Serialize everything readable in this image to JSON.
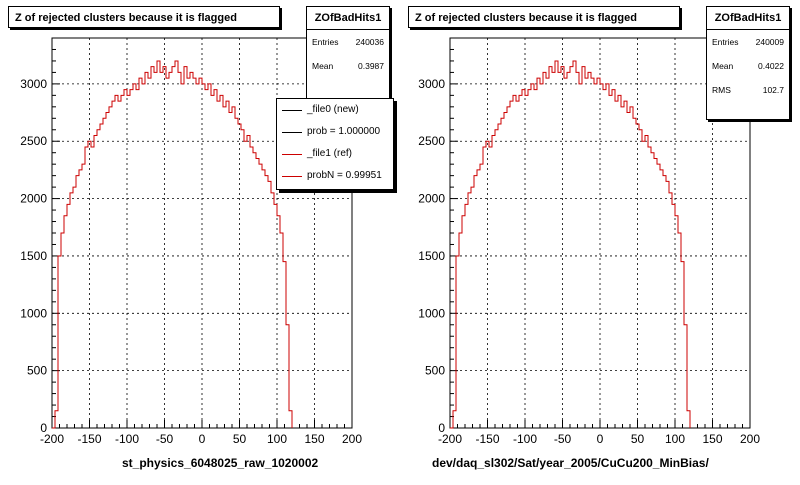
{
  "chart_data": [
    {
      "type": "histogram",
      "title": "Z of rejected clusters  because it is flagged",
      "hist_name": "ZOfBadHits1",
      "stats": [
        {
          "label": "Entries",
          "value": "240036"
        },
        {
          "label": "Mean",
          "value": "0.3987"
        },
        {
          "label": "RMS",
          "value": ""
        }
      ],
      "legend": [
        {
          "text": "_file0 (new)",
          "color": "#000000"
        },
        {
          "text": "prob = 1.000000",
          "color": "#000000"
        },
        {
          "text": "_file1 (ref)",
          "color": "#cc0000"
        },
        {
          "text": "probN = 0.99951",
          "color": "#cc0000"
        }
      ],
      "xlabel": "st_physics_6048025_raw_1020002",
      "xlim": [
        -200,
        200
      ],
      "ylim": [
        0,
        3400
      ],
      "xticks": [
        -200,
        -150,
        -100,
        -50,
        0,
        50,
        100,
        150,
        200
      ],
      "yticks": [
        0,
        500,
        1000,
        1500,
        2000,
        2500,
        3000
      ],
      "series_color": "#cc0000"
    },
    {
      "type": "histogram",
      "title": "Z of rejected clusters  because it is flagged",
      "hist_name": "ZOfBadHits1",
      "stats": [
        {
          "label": "Entries",
          "value": "240009"
        },
        {
          "label": "Mean",
          "value": "0.4022"
        },
        {
          "label": "RMS",
          "value": "102.7"
        }
      ],
      "xlabel": "dev/daq_sl302/Sat/year_2005/CuCu200_MinBias/",
      "xlim": [
        -200,
        200
      ],
      "ylim": [
        0,
        3400
      ],
      "xticks": [
        -200,
        -150,
        -100,
        -50,
        0,
        50,
        100,
        150,
        200
      ],
      "yticks": [
        0,
        500,
        1000,
        1500,
        2000,
        2500,
        3000
      ],
      "series_color": "#cc0000"
    }
  ],
  "bins": {
    "edges_start": -200,
    "bin_width": 4,
    "values": [
      0,
      150,
      1500,
      1700,
      1850,
      1950,
      2050,
      2100,
      2200,
      2250,
      2300,
      2450,
      2500,
      2450,
      2550,
      2600,
      2650,
      2700,
      2750,
      2800,
      2850,
      2900,
      2850,
      2900,
      2950,
      2900,
      2950,
      3000,
      2950,
      3050,
      3000,
      3100,
      3050,
      3150,
      3100,
      3200,
      3100,
      3150,
      3050,
      3100,
      3150,
      3200,
      3100,
      3000,
      3150,
      3050,
      3100,
      3050,
      3000,
      3050,
      3000,
      2950,
      3000,
      2900,
      2950,
      2850,
      2900,
      2800,
      2850,
      2750,
      2800,
      2700,
      2650,
      2600,
      2500,
      2550,
      2450,
      2400,
      2350,
      2300,
      2250,
      2200,
      2150,
      2050,
      1950,
      1850,
      1700,
      1450,
      900,
      150
    ]
  }
}
